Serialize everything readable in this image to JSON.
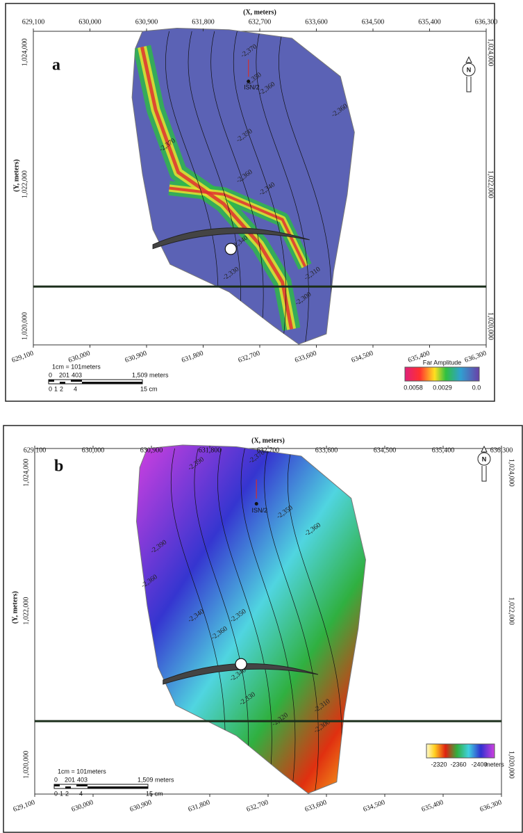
{
  "panels": [
    {
      "label": "a",
      "x_axis_title": "(X, meters)",
      "y_axis_title": "(Y, meters)",
      "x_ticks": [
        "629,100",
        "630,000",
        "630,900",
        "631,800",
        "632,700",
        "633,600",
        "634,500",
        "635,400",
        "636,300"
      ],
      "y_ticks": [
        "1,024,000",
        "1,022,000",
        "1,020,000"
      ],
      "well": "ISN/2",
      "north": "N",
      "contour_labels": [
        "-2,370",
        "-2,350",
        "-2,360",
        "-2,360",
        "-2,370",
        "-2,350",
        "-2,360",
        "-2,340",
        "-2,340",
        "-2,330",
        "-2,310",
        "-2,300"
      ],
      "scale": {
        "ratio": "1cm = 101meters",
        "distance_labels": [
          "0",
          "201",
          "403",
          "1,509 meters"
        ],
        "cm_labels": [
          "0",
          "1",
          "2",
          "4",
          "15 cm"
        ]
      },
      "legend": {
        "title": "Far Amplitude",
        "labels": [
          "0.0058",
          "0.0029",
          "0.0"
        ]
      }
    },
    {
      "label": "b",
      "x_axis_title": "(X, meters)",
      "y_axis_title": "(Y, meters)",
      "x_ticks": [
        "629,100",
        "630,000",
        "630,900",
        "631,800",
        "632,700",
        "633,600",
        "634,500",
        "635,400",
        "636,300"
      ],
      "y_ticks": [
        "1,024,000",
        "1,022,000",
        "1,020,000"
      ],
      "well": "ISN/2",
      "north": "N",
      "contour_labels": [
        "-2,390",
        "-2,370",
        "-2,350",
        "-2,360",
        "-2,390",
        "-2,360",
        "-2,340",
        "-2,350",
        "-2,360",
        "-2,340",
        "-2,330",
        "-2,320",
        "-2,310",
        "-2,300"
      ],
      "scale": {
        "ratio": "1cm = 101meters",
        "distance_labels": [
          "0",
          "201",
          "403",
          "1,509 meters"
        ],
        "cm_labels": [
          "0",
          "1",
          "2",
          "4",
          "15 cm"
        ]
      },
      "legend": {
        "title": null,
        "labels": [
          "-2320",
          "-2360",
          "-2400",
          "meters"
        ]
      }
    }
  ]
}
